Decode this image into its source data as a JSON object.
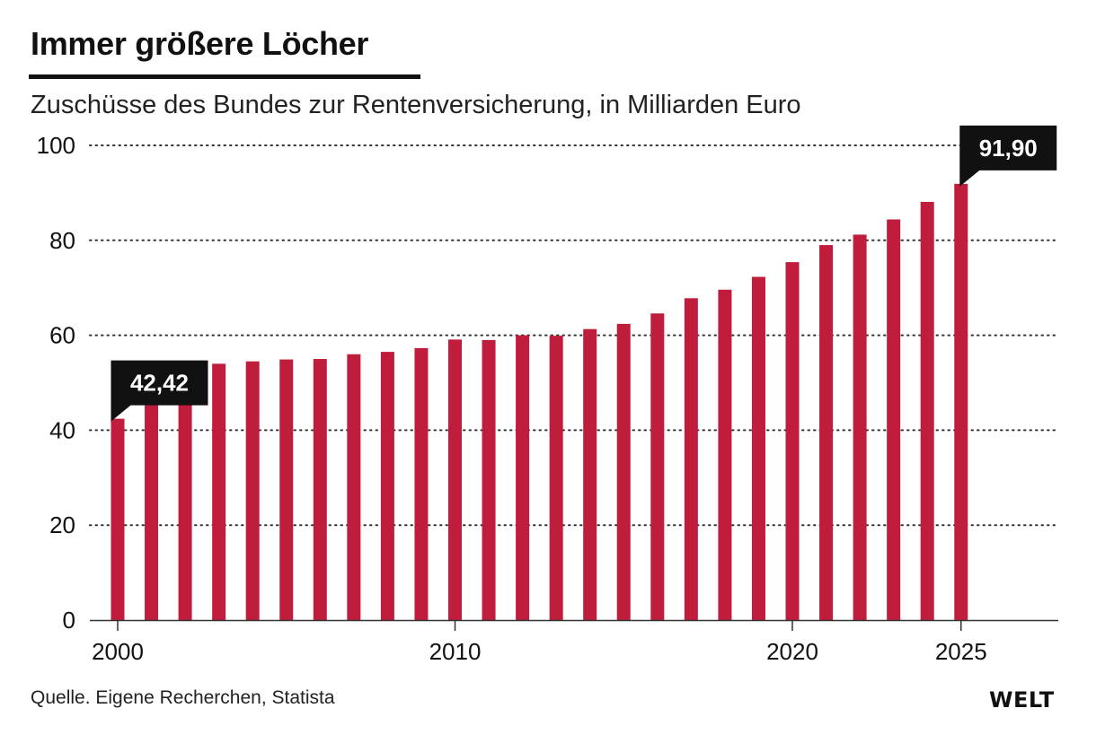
{
  "header": {
    "title": "Immer größere Löcher",
    "subtitle": "Zuschüsse des Bundes zur Rentenversicherung, in Milliarden Euro"
  },
  "footer": {
    "source": "Quelle. Eigene Recherchen, Statista",
    "logo": "WELT"
  },
  "colors": {
    "bar": "#c01c3c",
    "callout": "#111111",
    "grid": "#333333",
    "axis": "#333333"
  },
  "chart_data": {
    "type": "bar",
    "title": "Immer größere Löcher",
    "subtitle": "Zuschüsse des Bundes zur Rentenversicherung, in Milliarden Euro",
    "xlabel": "",
    "ylabel": "",
    "x": [
      2000,
      2001,
      2002,
      2003,
      2004,
      2005,
      2006,
      2007,
      2008,
      2009,
      2010,
      2011,
      2012,
      2013,
      2014,
      2015,
      2016,
      2017,
      2018,
      2019,
      2020,
      2021,
      2022,
      2023,
      2024,
      2025
    ],
    "values": [
      42.42,
      46.1,
      49.2,
      54.0,
      54.5,
      54.9,
      55.0,
      56.0,
      56.5,
      57.3,
      59.1,
      59.0,
      60.0,
      59.9,
      61.3,
      62.4,
      64.6,
      67.8,
      69.6,
      72.3,
      75.4,
      79.0,
      81.2,
      84.4,
      88.1,
      91.9
    ],
    "xlim": [
      2000,
      2028
    ],
    "ylim": [
      0,
      100
    ],
    "yticks": [
      0,
      20,
      40,
      60,
      80,
      100
    ],
    "xticks": [
      "2000",
      "2010",
      "2020",
      "2025"
    ],
    "grid": "horizontal dotted",
    "annotations": [
      {
        "x": 2000,
        "label": "42,42"
      },
      {
        "x": 2025,
        "label": "91,90"
      }
    ]
  }
}
